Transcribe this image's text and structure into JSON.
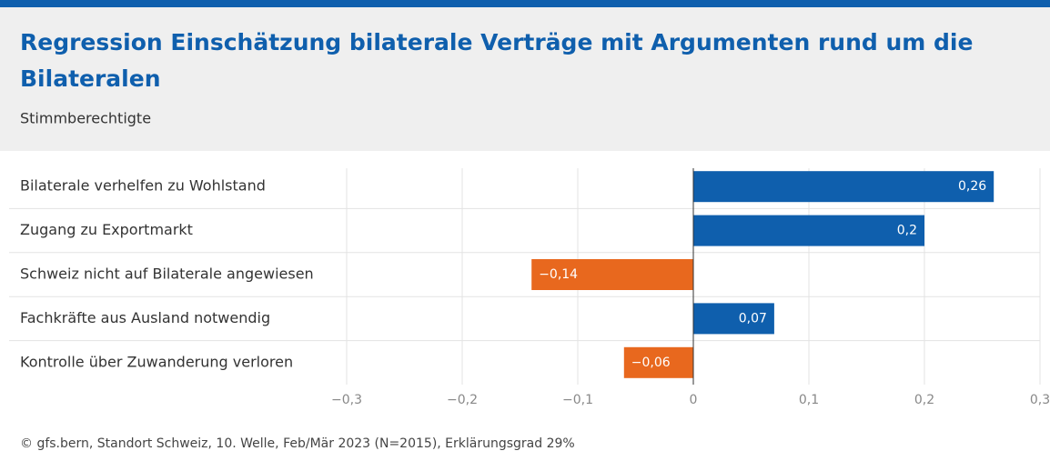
{
  "chart_data": {
    "type": "bar",
    "orientation": "horizontal",
    "title_lines": [
      "Regression Einschätzung bilaterale Verträge mit Argumenten rund um die",
      "Bilateralen"
    ],
    "subtitle": "Stimmberechtigte",
    "categories": [
      "Bilaterale verhelfen zu Wohlstand",
      "Zugang zu Exportmarkt",
      "Schweiz nicht auf Bilaterale angewiesen",
      "Fachkräfte aus Ausland notwendig",
      "Kontrolle über Zuwanderung verloren"
    ],
    "values": [
      0.26,
      0.2,
      -0.14,
      0.07,
      -0.06
    ],
    "value_labels": [
      "0,26",
      "0,2",
      "−0,14",
      "0,07",
      "−0,06"
    ],
    "positive_color": "#0f5fad",
    "negative_color": "#e8681e",
    "xlim": [
      -0.3,
      0.3
    ],
    "xticks": [
      {
        "value": -0.3,
        "label": "−0,3"
      },
      {
        "value": -0.2,
        "label": "−0,2"
      },
      {
        "value": -0.1,
        "label": "−0,1"
      },
      0,
      {
        "value": 0.1,
        "label": "0,1"
      },
      {
        "value": 0.2,
        "label": "0,2"
      },
      {
        "value": 0.3,
        "label": "0,3"
      }
    ],
    "grid": true,
    "footer": "© gfs.bern, Standort Schweiz, 10. Welle, Feb/Mär 2023 (N=2015), Erklärungsgrad 29%"
  }
}
